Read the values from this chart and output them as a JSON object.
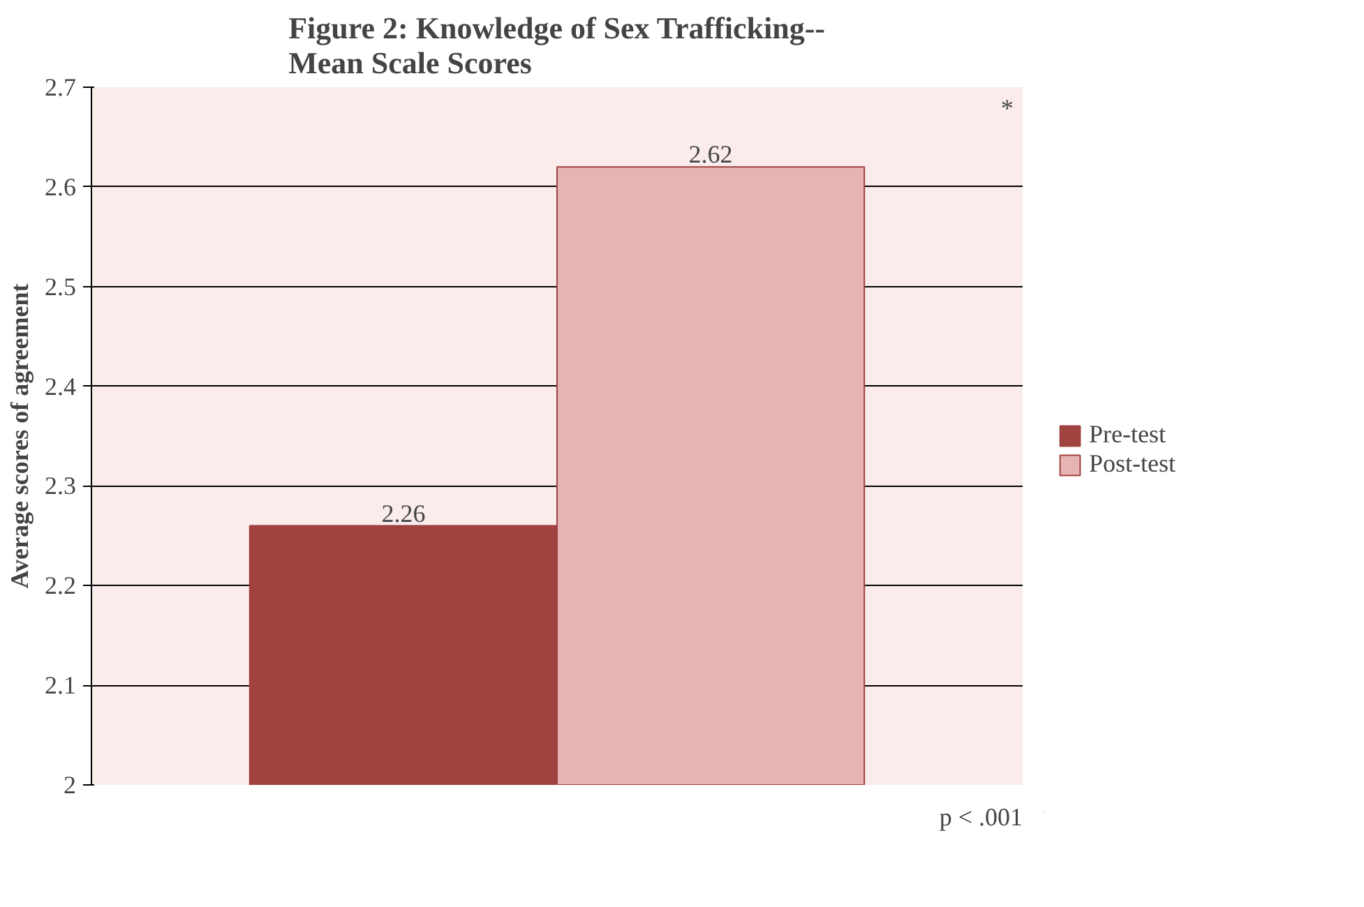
{
  "chart_data": {
    "type": "bar",
    "title": "Figure 2: Knowledge of Sex Trafficking--\nMean Scale Scores",
    "ylabel": "Average scores of agreement",
    "categories": [
      null
    ],
    "series": [
      {
        "name": "Pre-test",
        "color": "#a04240",
        "values": [
          2.26
        ]
      },
      {
        "name": "Post-test",
        "color": "#e6b4b4",
        "values": [
          2.62
        ]
      }
    ],
    "ylim": [
      2,
      2.7
    ],
    "yticks": [
      2,
      2.1,
      2.2,
      2.3,
      2.4,
      2.5,
      2.6,
      2.7
    ],
    "grid": "y",
    "legend": "right",
    "data_labels": true,
    "annotations": [
      "*",
      "p < .001"
    ]
  }
}
